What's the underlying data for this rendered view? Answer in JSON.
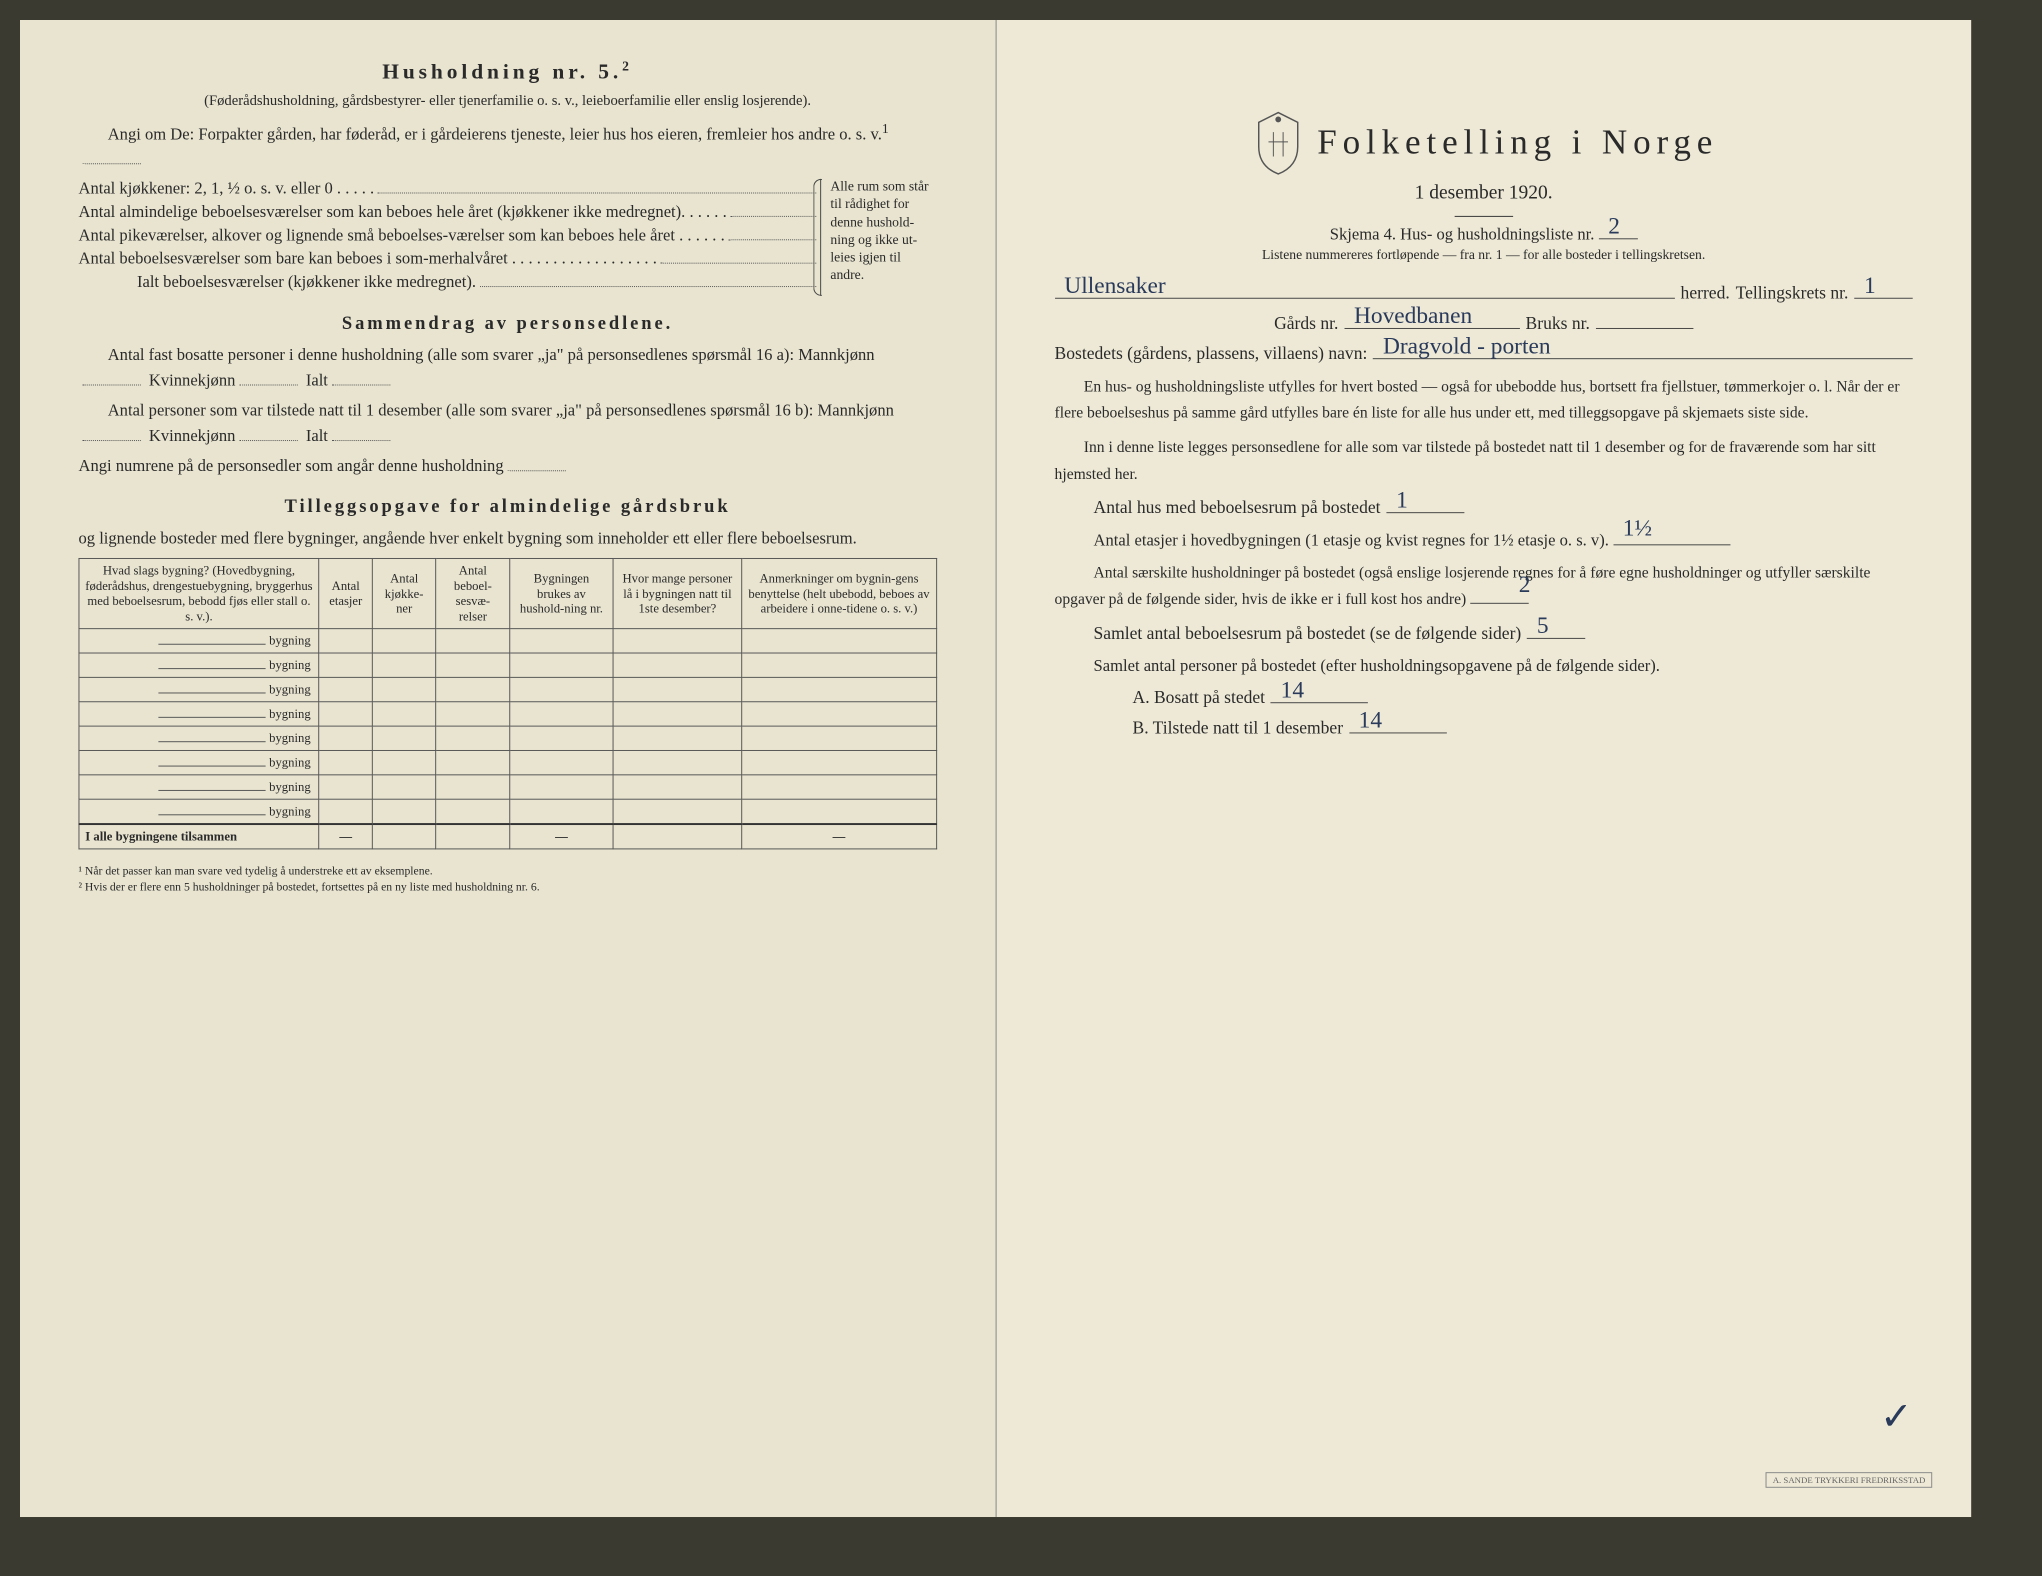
{
  "left": {
    "heading": "Husholdning nr. 5.",
    "heading_sup": "2",
    "sub1": "(Føderådshusholdning, gårdsbestyrer- eller tjenerfamilie o. s. v., leieboerfamilie eller enslig losjerende).",
    "sub2": "Angi om De: Forpakter gården, har føderåd, er i gårdeierens tjeneste, leier hus hos eieren, fremleier hos andre o. s. v.",
    "kjokken": "Antal kjøkkener: 2, 1, ½ o. s. v. eller 0 . . . . .",
    "almindelige": "Antal almindelige beboelsesværelser som kan beboes hele året (kjøkkener ikke medregnet). . . . . .",
    "pike": "Antal pikeværelser, alkover og lignende små beboelses-værelser som kan beboes hele året . . . . . .",
    "sommer": "Antal beboelsesværelser som bare kan beboes i som-merhalvåret . . . . . . . . . . . . . . . . . .",
    "ialt": "Ialt beboelsesværelser (kjøkkener ikke medregnet).",
    "bracket_note": "Alle rum som står til rådighet for denne hushold-ning og ikke ut-leies igjen til andre.",
    "sammendrag_title": "Sammendrag av personsedlene.",
    "samm1": "Antal fast bosatte personer i denne husholdning (alle som svarer „ja\" på personsedlenes spørsmål 16 a): Mannkjønn",
    "samm_kv": "Kvinnekjønn",
    "samm_ialt": "Ialt",
    "samm2": "Antal personer som var tilstede natt til 1 desember (alle som svarer „ja\" på personsedlenes spørsmål 16 b): Mannkjønn",
    "samm3": "Angi numrene på de personsedler som angår denne husholdning",
    "tillegg_title": "Tilleggsopgave for almindelige gårdsbruk",
    "tillegg_sub": "og lignende bosteder med flere bygninger, angående hver enkelt bygning som inneholder ett eller flere beboelsesrum.",
    "table": {
      "columns": [
        "Hvad slags bygning?\n(Hovedbygning, føderådshus, drengestuebygning, bryggerhus med beboelsesrum, bebodd fjøs eller stall o. s. v.).",
        "Antal etasjer",
        "Antal kjøkke-ner",
        "Antal beboel-sesvæ-relser",
        "Bygningen brukes av hushold-ning nr.",
        "Hvor mange personer lå i bygningen natt til 1ste desember?",
        "Anmerkninger om bygnin-gens benyttelse (helt ubebodd, beboes av arbeidere i onne-tidene o. s. v.)"
      ],
      "row_label": "bygning",
      "row_count": 8,
      "sum_label": "I alle bygningene tilsammen",
      "dash": "—"
    },
    "footnote1": "¹ Når det passer kan man svare ved tydelig å understreke ett av eksemplene.",
    "footnote2": "² Hvis der er flere enn 5 husholdninger på bostedet, fortsettes på en ny liste med husholdning nr. 6."
  },
  "right": {
    "title": "Folketelling i Norge",
    "date": "1 desember 1920.",
    "skjema": "Skjema 4.  Hus- og husholdningsliste nr.",
    "skjema_nr": "2",
    "listenote": "Listene nummereres fortløpende — fra nr. 1 — for alle bosteder i tellingskretsen.",
    "herred_hw": "Ullensaker",
    "herred_label": "herred.",
    "telling_label": "Tellingskrets nr.",
    "telling_nr": "1",
    "gards_label": "Gårds nr.",
    "gards_hw": "Hovedbanen",
    "bruks_label": "Bruks nr.",
    "bosted_label": "Bostedets (gårdens, plassens, villaens) navn:",
    "bosted_hw": "Dragvold - porten",
    "para1": "En hus- og husholdningsliste utfylles for hvert bosted — også for ubebodde hus, bortsett fra fjellstuer, tømmerkojer o. l.  Når der er flere beboelseshus på samme gård utfylles bare én liste for alle hus under ett, med tilleggsopgave på skjemaets siste side.",
    "para2": "Inn i denne liste legges personsedlene for alle som var tilstede på bostedet natt til 1 desember og for de fraværende som har sitt hjemsted her.",
    "antal_hus_label": "Antal hus med beboelsesrum på bostedet",
    "antal_hus_hw": "1",
    "antal_etasjer_label": "Antal etasjer i hovedbygningen (1 etasje og kvist regnes for 1½ etasje o. s. v).",
    "antal_etasjer_hw": "1½",
    "para3": "Antal særskilte husholdninger på bostedet (også enslige losjerende regnes for å føre egne husholdninger og utfyller særskilte opgaver på de følgende sider, hvis de ikke er i full kost hos andre)",
    "saerskilte_hw": "2",
    "samlet_bebo_label": "Samlet antal beboelsesrum på bostedet (se de følgende sider)",
    "samlet_bebo_hw": "5",
    "samlet_pers_label": "Samlet antal personer på bostedet (efter husholdningsopgavene på de følgende sider).",
    "bosatt_label": "A.  Bosatt på stedet",
    "bosatt_hw": "14",
    "tilstede_label": "B.  Tilstede natt til 1 desember",
    "tilstede_hw": "14",
    "stamp": "A. SANDE TRYKKERI\nFREDRIKSSTAD"
  },
  "colors": {
    "paper": "#e8e4d0",
    "paper_right": "#ede9d6",
    "ink": "#2a2a2a",
    "handwriting": "#2a3a5a",
    "border": "#555555"
  }
}
